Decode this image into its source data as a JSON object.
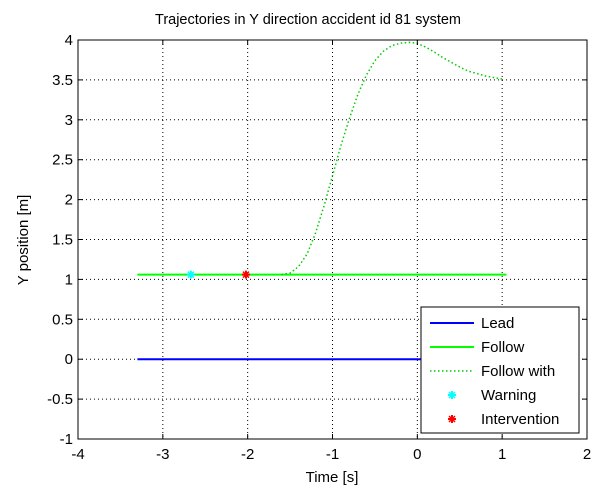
{
  "chart_data": {
    "type": "line",
    "title": "Trajectories in Y direction accident id 81 system",
    "xlabel": "Time [s]",
    "ylabel": "Y position [m]",
    "xlim": [
      -4,
      2
    ],
    "ylim": [
      -1,
      4
    ],
    "xticks": [
      "-4",
      "-3",
      "-2",
      "-1",
      "0",
      "1",
      "2"
    ],
    "yticks": [
      "-1",
      "-0.5",
      "0",
      "0.5",
      "1",
      "1.5",
      "2",
      "2.5",
      "3",
      "3.5",
      "4"
    ],
    "grid": true,
    "legend_position": "bottom-right",
    "series": [
      {
        "name": "Lead",
        "color": "#0000ff",
        "style": "solid",
        "x": [
          -3.3,
          1.05
        ],
        "y": [
          0,
          0
        ]
      },
      {
        "name": "Follow",
        "color": "#00ff00",
        "style": "solid",
        "x": [
          -3.3,
          1.05
        ],
        "y": [
          1.06,
          1.06
        ]
      },
      {
        "name": "Follow with",
        "color": "#00cc00",
        "style": "dotted",
        "x": [
          -1.6,
          -1.5,
          -1.4,
          -1.3,
          -1.2,
          -1.1,
          -1.0,
          -0.9,
          -0.8,
          -0.7,
          -0.6,
          -0.5,
          -0.4,
          -0.3,
          -0.2,
          -0.1,
          0.0,
          0.1,
          0.2,
          0.3,
          0.4,
          0.5,
          0.6,
          0.7,
          0.8,
          0.9,
          1.0
        ],
        "y": [
          1.06,
          1.08,
          1.16,
          1.32,
          1.58,
          1.92,
          2.3,
          2.68,
          3.02,
          3.32,
          3.56,
          3.74,
          3.86,
          3.93,
          3.96,
          3.97,
          3.96,
          3.91,
          3.85,
          3.78,
          3.72,
          3.66,
          3.61,
          3.58,
          3.55,
          3.53,
          3.51
        ]
      }
    ],
    "markers": [
      {
        "name": "Warning",
        "color": "#00ffff",
        "x": -2.67,
        "y": 1.06
      },
      {
        "name": "Intervention",
        "color": "#ff0000",
        "x": -2.02,
        "y": 1.06
      }
    ]
  }
}
